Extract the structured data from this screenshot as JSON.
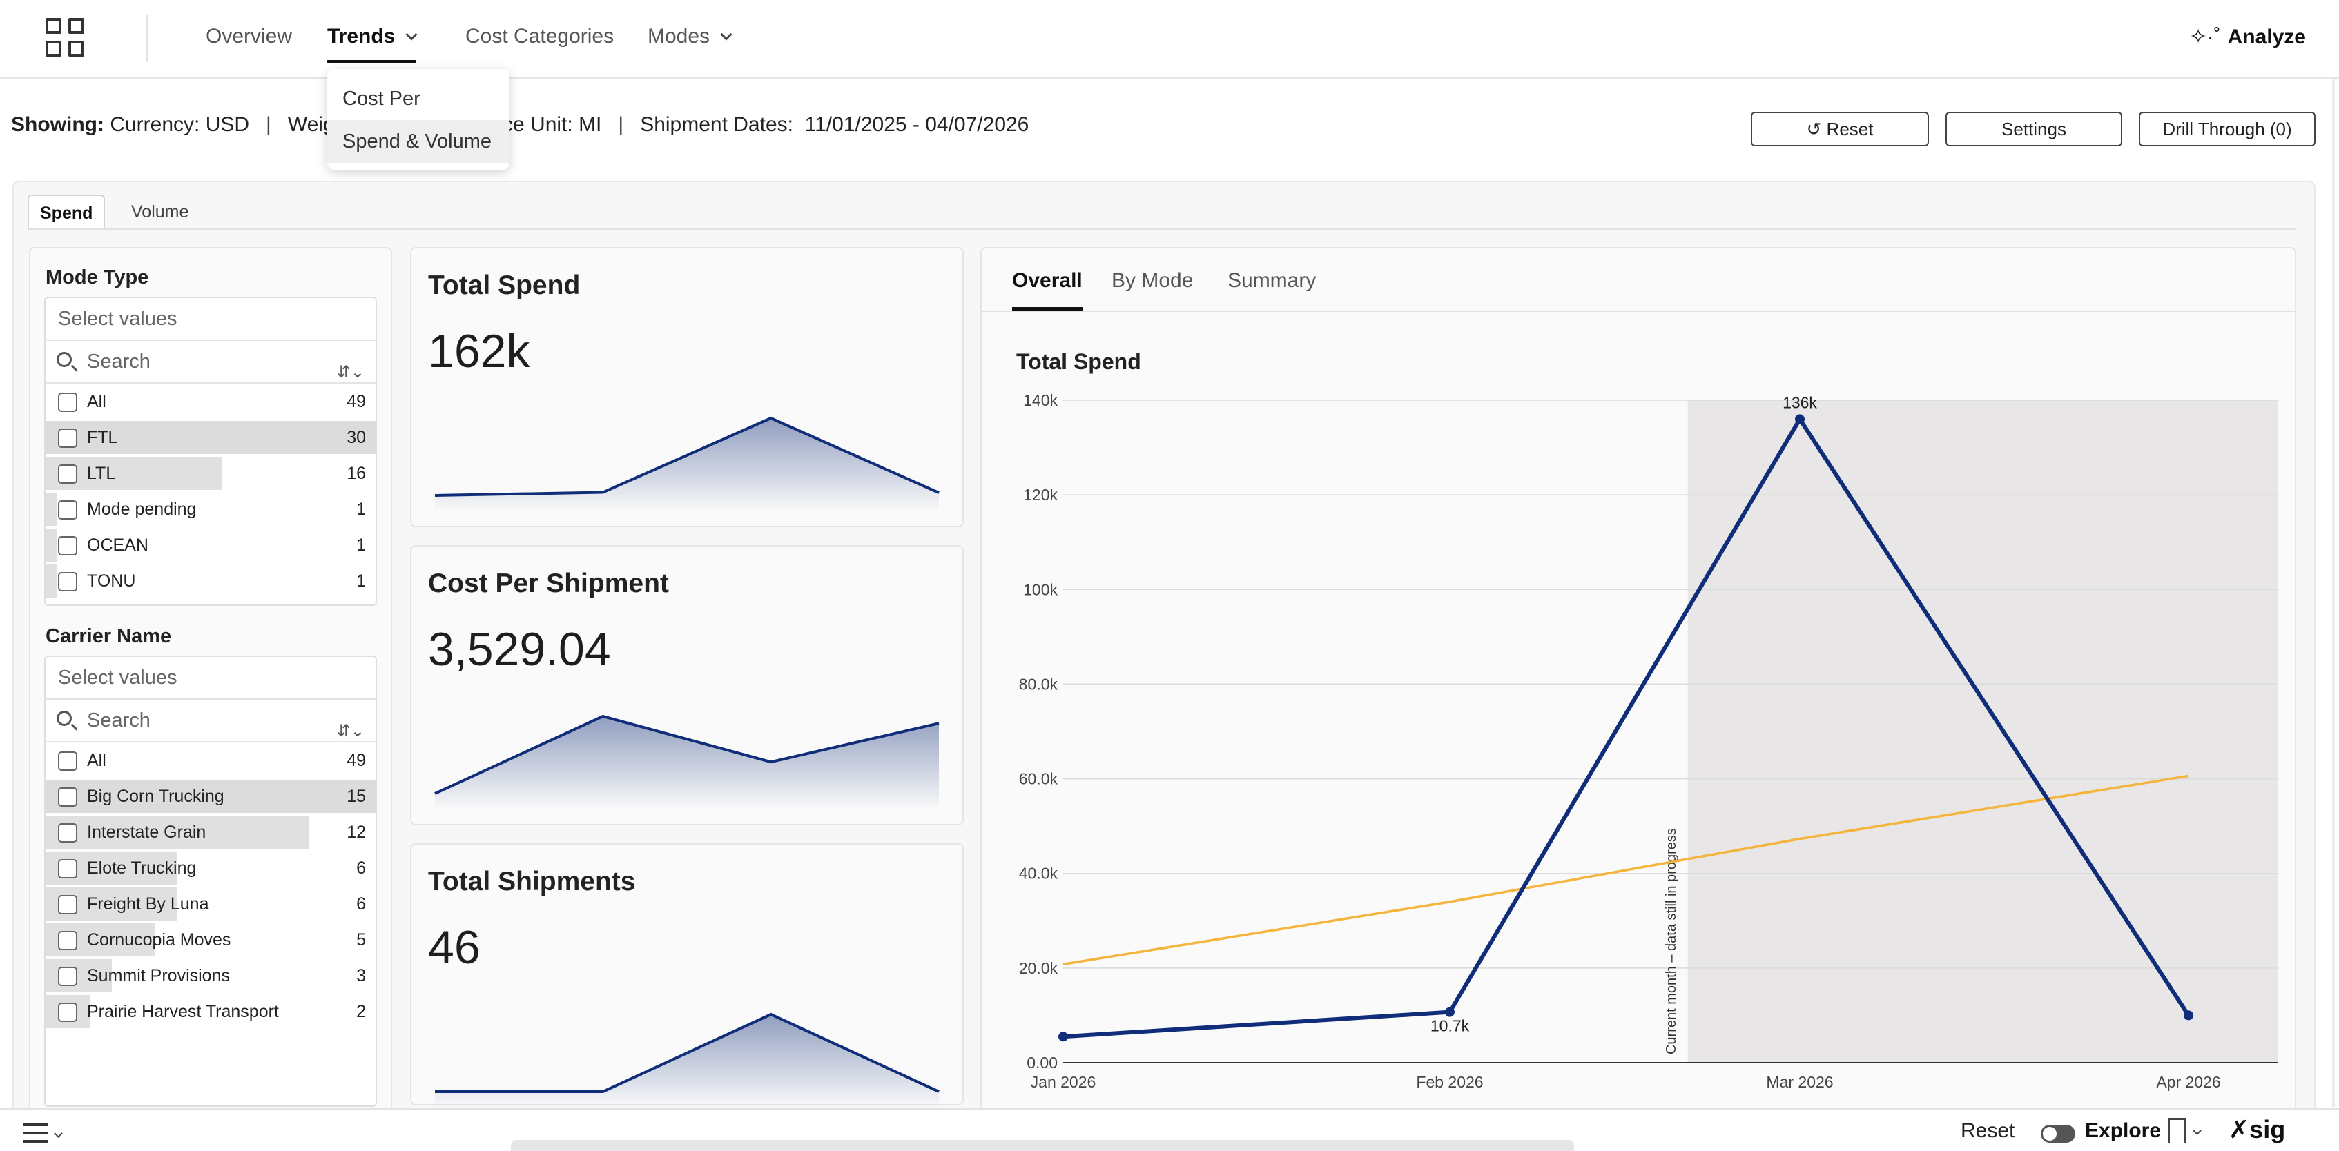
{
  "nav": {
    "items": [
      {
        "label": "Overview"
      },
      {
        "label": "Trends"
      },
      {
        "label": "Cost Categories"
      },
      {
        "label": "Modes"
      }
    ],
    "analyze_label": "Analyze"
  },
  "dropdown": {
    "items": [
      {
        "label": "Cost Per"
      },
      {
        "label": "Spend & Volume"
      }
    ]
  },
  "showing": {
    "prefix": "Showing:",
    "currency": "Currency: USD",
    "weight_partial": "Weig",
    "distance_partial": "ance Unit: MI",
    "dates_label": "Shipment Dates:",
    "dates_value": "11/01/2025 - 04/07/2026"
  },
  "buttons": {
    "reset": "↺ Reset",
    "settings": "Settings",
    "drill": "Drill Through (0)"
  },
  "subtabs": [
    {
      "label": "Spend"
    },
    {
      "label": "Volume"
    }
  ],
  "filters": {
    "mode": {
      "title": "Mode Type",
      "placeholder": "Select values",
      "search": "Search",
      "rows": [
        {
          "label": "All",
          "count": "49"
        },
        {
          "label": "FTL",
          "count": "30"
        },
        {
          "label": "LTL",
          "count": "16"
        },
        {
          "label": "Mode pending",
          "count": "1"
        },
        {
          "label": "OCEAN",
          "count": "1"
        },
        {
          "label": "TONU",
          "count": "1"
        }
      ]
    },
    "carrier": {
      "title": "Carrier Name",
      "placeholder": "Select values",
      "search": "Search",
      "rows": [
        {
          "label": "All",
          "count": "49"
        },
        {
          "label": "Big Corn Trucking",
          "count": "15"
        },
        {
          "label": "Interstate Grain",
          "count": "12"
        },
        {
          "label": "Elote Trucking",
          "count": "6"
        },
        {
          "label": "Freight By Luna",
          "count": "6"
        },
        {
          "label": "Cornucopia Moves",
          "count": "5"
        },
        {
          "label": "Summit Provisions",
          "count": "3"
        },
        {
          "label": "Prairie Harvest Transport",
          "count": "2"
        }
      ]
    }
  },
  "kpis": [
    {
      "title": "Total Spend",
      "value": "162k",
      "spark": [
        5500,
        10700,
        136000,
        10000
      ]
    },
    {
      "title": "Cost Per Shipment",
      "value": "3,529.04",
      "spark": [
        1,
        3.2,
        1.9,
        3.0
      ]
    },
    {
      "title": "Total Shipments",
      "value": "46",
      "spark": [
        1,
        1,
        3.9,
        1
      ]
    }
  ],
  "chart_tabs": [
    {
      "label": "Overall"
    },
    {
      "label": "By Mode"
    },
    {
      "label": "Summary"
    }
  ],
  "chart_data": {
    "type": "line",
    "title": "Total Spend",
    "categories": [
      "Jan 2026",
      "Feb 2026",
      "Mar 2026",
      "Apr 2026"
    ],
    "yticks": [
      "0.00",
      "20.0k",
      "40.0k",
      "60.0k",
      "80.0k",
      "100k",
      "120k",
      "140k"
    ],
    "ylim": [
      0,
      140000
    ],
    "series": [
      {
        "name": "",
        "values": [
          5500,
          10700,
          136000,
          10000
        ],
        "color": "#0f2d78",
        "labels": [
          "",
          "10.7k",
          "136k",
          ""
        ]
      },
      {
        "name": "",
        "values": [
          20800,
          34000,
          47300,
          60600
        ],
        "color": "#f5b43c",
        "labels": [
          "",
          "",
          "",
          ""
        ]
      }
    ],
    "annotation": "Current month – data still in progress",
    "shaded_from": 1.68,
    "grid": true
  },
  "bottom": {
    "reset": "Reset",
    "explore": "Explore",
    "logo": "sig"
  },
  "colors": {
    "accent": "#0f2d78",
    "trend": "#f5b43c",
    "shade": "#e8e6e6"
  }
}
